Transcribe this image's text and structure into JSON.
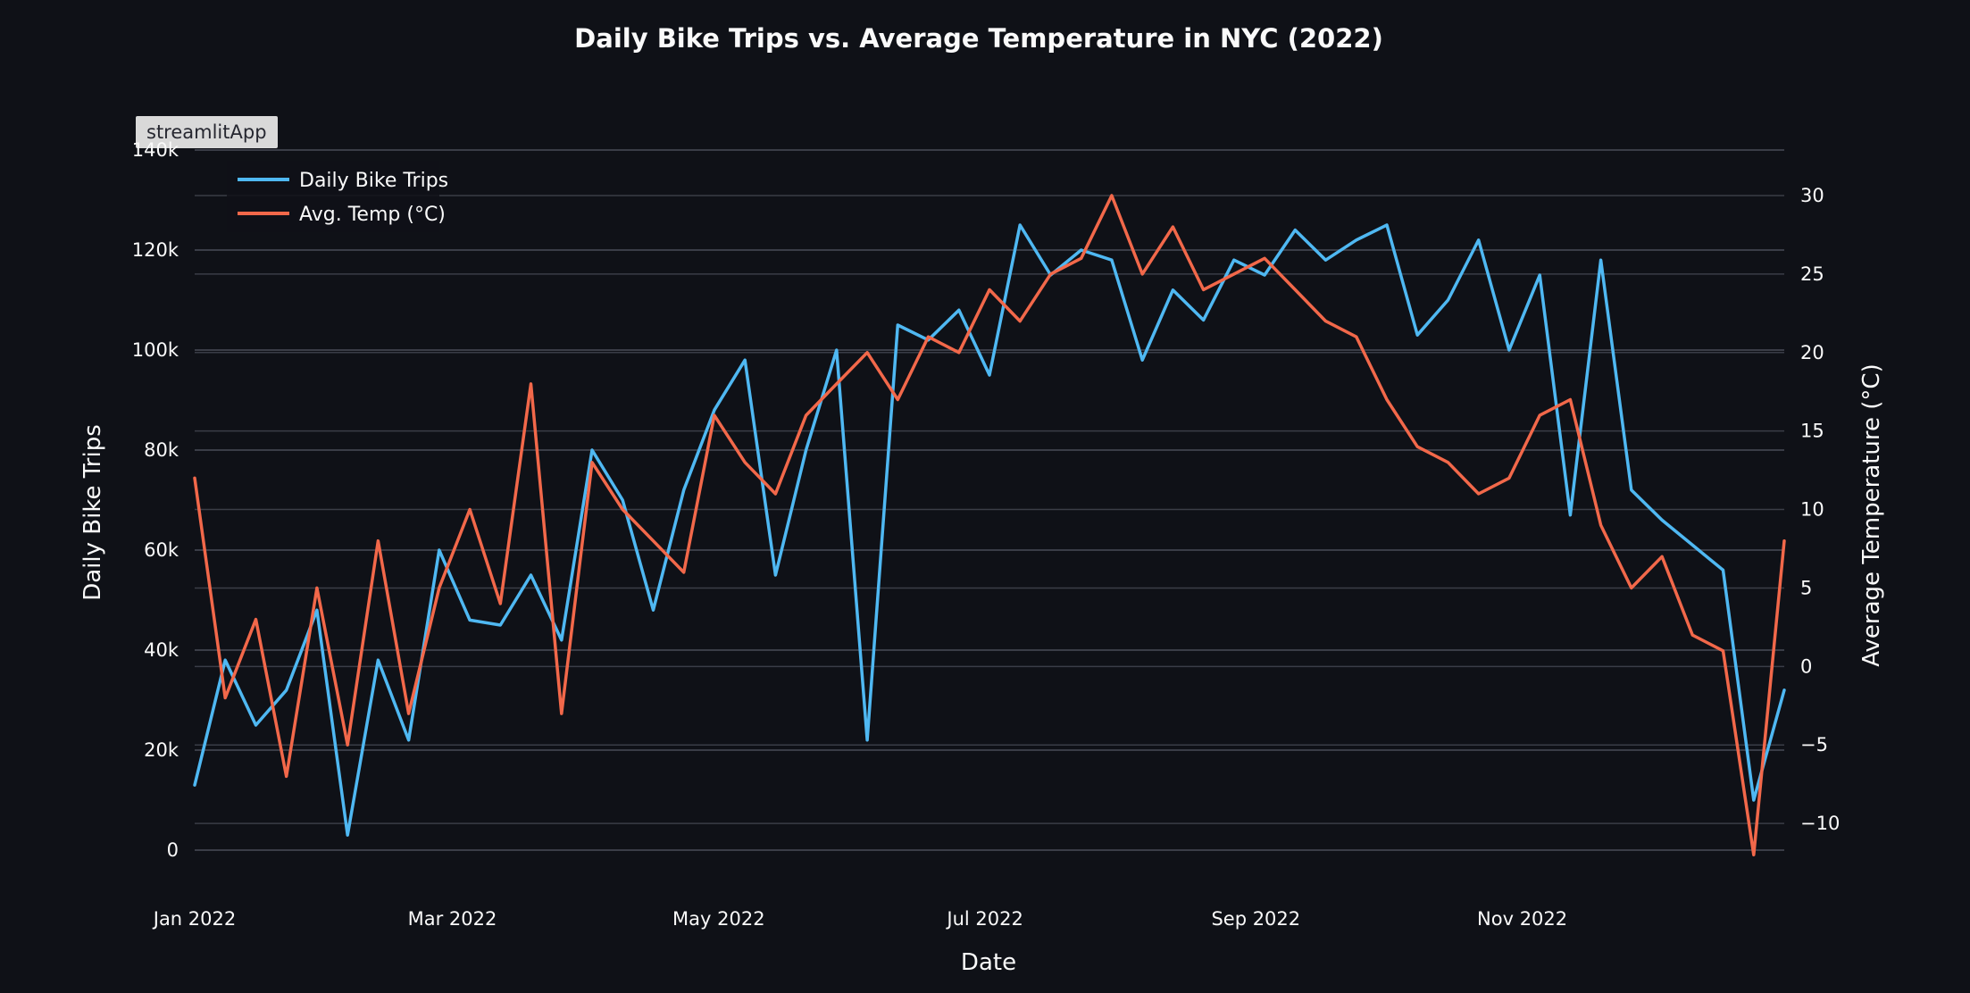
{
  "app_badge": "streamlitApp",
  "colors": {
    "background": "#0f1117",
    "trips": "#4fb8f2",
    "temp": "#f2684a",
    "grid": "#3a3d47",
    "text": "#fafafa"
  },
  "chart_data": {
    "type": "line",
    "title": "Daily Bike Trips vs. Average Temperature in NYC (2022)",
    "xlabel": "Date",
    "ylabel": "Daily Bike Trips",
    "y2label": "Average Temperature (°C)",
    "xlim": [
      "2022-01-01",
      "2022-12-31"
    ],
    "ylim": [
      0,
      140000
    ],
    "y2lim": [
      -11.7,
      32.9
    ],
    "x_ticks": [
      {
        "date": "2022-01-01",
        "label": "Jan 2022"
      },
      {
        "date": "2022-03-01",
        "label": "Mar 2022"
      },
      {
        "date": "2022-05-01",
        "label": "May 2022"
      },
      {
        "date": "2022-07-01",
        "label": "Jul 2022"
      },
      {
        "date": "2022-09-01",
        "label": "Sep 2022"
      },
      {
        "date": "2022-11-01",
        "label": "Nov 2022"
      }
    ],
    "y_ticks": [
      {
        "value": 0,
        "label": "0"
      },
      {
        "value": 20000,
        "label": "20k"
      },
      {
        "value": 40000,
        "label": "40k"
      },
      {
        "value": 60000,
        "label": "60k"
      },
      {
        "value": 80000,
        "label": "80k"
      },
      {
        "value": 100000,
        "label": "100k"
      },
      {
        "value": 120000,
        "label": "120k"
      },
      {
        "value": 140000,
        "label": "140k"
      }
    ],
    "y2_ticks": [
      {
        "value": -10,
        "label": "−10"
      },
      {
        "value": -5,
        "label": "−5"
      },
      {
        "value": 0,
        "label": "0"
      },
      {
        "value": 5,
        "label": "5"
      },
      {
        "value": 10,
        "label": "10"
      },
      {
        "value": 15,
        "label": "15"
      },
      {
        "value": 20,
        "label": "20"
      },
      {
        "value": 25,
        "label": "25"
      },
      {
        "value": 30,
        "label": "30"
      }
    ],
    "grid": true,
    "legend_position": "top-left",
    "series": [
      {
        "name": "Daily Bike Trips",
        "axis": "left",
        "x": [
          "2022-01-01",
          "2022-01-08",
          "2022-01-15",
          "2022-01-22",
          "2022-01-29",
          "2022-02-05",
          "2022-02-12",
          "2022-02-19",
          "2022-02-26",
          "2022-03-05",
          "2022-03-12",
          "2022-03-19",
          "2022-03-26",
          "2022-04-02",
          "2022-04-09",
          "2022-04-16",
          "2022-04-23",
          "2022-04-30",
          "2022-05-07",
          "2022-05-14",
          "2022-05-21",
          "2022-05-28",
          "2022-06-04",
          "2022-06-11",
          "2022-06-18",
          "2022-06-25",
          "2022-07-02",
          "2022-07-09",
          "2022-07-16",
          "2022-07-23",
          "2022-07-30",
          "2022-08-06",
          "2022-08-13",
          "2022-08-20",
          "2022-08-27",
          "2022-09-03",
          "2022-09-10",
          "2022-09-17",
          "2022-09-24",
          "2022-10-01",
          "2022-10-08",
          "2022-10-15",
          "2022-10-22",
          "2022-10-29",
          "2022-11-05",
          "2022-11-12",
          "2022-11-19",
          "2022-11-26",
          "2022-12-03",
          "2022-12-10",
          "2022-12-17",
          "2022-12-24",
          "2022-12-31"
        ],
        "values": [
          13000,
          38000,
          25000,
          32000,
          48000,
          3000,
          38000,
          22000,
          60000,
          46000,
          45000,
          55000,
          42000,
          80000,
          70000,
          48000,
          72000,
          88000,
          98000,
          55000,
          80000,
          100000,
          22000,
          105000,
          102000,
          108000,
          95000,
          125000,
          115000,
          120000,
          118000,
          98000,
          112000,
          106000,
          118000,
          115000,
          124000,
          118000,
          122000,
          125000,
          103000,
          110000,
          122000,
          100000,
          115000,
          67000,
          118000,
          72000,
          66000,
          61000,
          56000,
          10000,
          32000
        ]
      },
      {
        "name": "Avg. Temp (°C)",
        "axis": "right",
        "x": [
          "2022-01-01",
          "2022-01-08",
          "2022-01-15",
          "2022-01-22",
          "2022-01-29",
          "2022-02-05",
          "2022-02-12",
          "2022-02-19",
          "2022-02-26",
          "2022-03-05",
          "2022-03-12",
          "2022-03-19",
          "2022-03-26",
          "2022-04-02",
          "2022-04-09",
          "2022-04-16",
          "2022-04-23",
          "2022-04-30",
          "2022-05-07",
          "2022-05-14",
          "2022-05-21",
          "2022-05-28",
          "2022-06-04",
          "2022-06-11",
          "2022-06-18",
          "2022-06-25",
          "2022-07-02",
          "2022-07-09",
          "2022-07-16",
          "2022-07-23",
          "2022-07-30",
          "2022-08-06",
          "2022-08-13",
          "2022-08-20",
          "2022-08-27",
          "2022-09-03",
          "2022-09-10",
          "2022-09-17",
          "2022-09-24",
          "2022-10-01",
          "2022-10-08",
          "2022-10-15",
          "2022-10-22",
          "2022-10-29",
          "2022-11-05",
          "2022-11-12",
          "2022-11-19",
          "2022-11-26",
          "2022-12-03",
          "2022-12-10",
          "2022-12-17",
          "2022-12-24",
          "2022-12-31"
        ],
        "values": [
          12,
          -2,
          3,
          -7,
          5,
          -5,
          8,
          -3,
          5,
          10,
          4,
          18,
          -3,
          13,
          10,
          8,
          6,
          16,
          13,
          11,
          16,
          18,
          20,
          17,
          21,
          20,
          24,
          22,
          25,
          26,
          30,
          25,
          28,
          24,
          25,
          26,
          24,
          22,
          21,
          17,
          14,
          13,
          11,
          12,
          16,
          17,
          9,
          5,
          7,
          2,
          1,
          -12,
          8
        ]
      }
    ]
  }
}
